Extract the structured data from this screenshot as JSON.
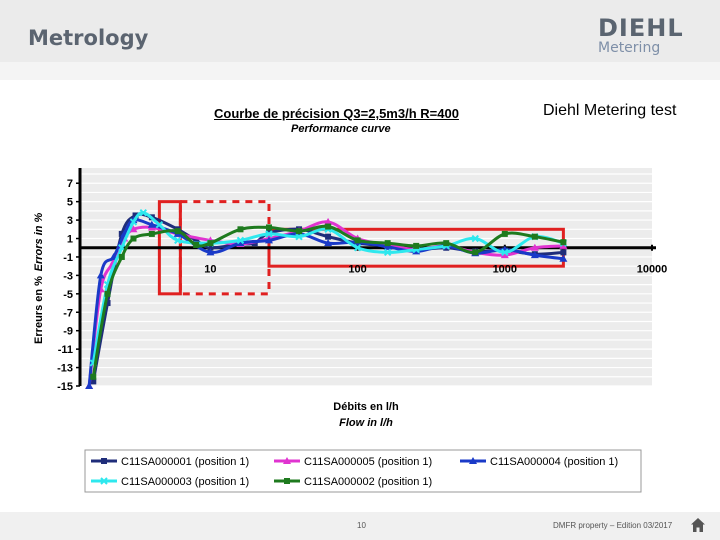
{
  "header": {
    "title": "Metrology"
  },
  "logo": {
    "word": "DIEHL",
    "sub": "Metering"
  },
  "test_label": "Diehl Metering test",
  "footer": {
    "page": "10",
    "copyright": "DMFR property – Edition 03/2017"
  },
  "colors": {
    "header_bg": "#ebebeb",
    "logo_gray": "#5a6470",
    "logo_blue": "#7e8fa8",
    "tolerance_red": "#e02020"
  },
  "chart_data": {
    "type": "line",
    "title": "Courbe de précision Q3=2,5m3/h R=400",
    "subtitle": "Performance curve",
    "xlabel": "Débits en l/h",
    "xlabel2": "Flow in l/h",
    "ylabel": "Erreurs en %",
    "ylabel2": "Errors in %",
    "xscale": "log",
    "xlim": [
      1.3,
      10000
    ],
    "ylim": [
      -15,
      8
    ],
    "xticks": [
      10,
      100,
      1000,
      10000
    ],
    "xtick_labels": [
      "10",
      "100",
      "1000",
      "10000"
    ],
    "yticks": [
      7,
      5,
      3,
      1,
      -1,
      -3,
      -5,
      -7,
      -9,
      -11,
      -13,
      -15
    ],
    "ytick_labels": [
      "7",
      "5",
      "3",
      "1",
      "-1",
      "-3",
      "-5",
      "-7",
      "-9",
      "-11",
      "-13",
      "-15"
    ],
    "grid": true,
    "legend_position": "bottom",
    "tolerance_zones": [
      {
        "style": "solid",
        "x": [
          4.5,
          6.25
        ],
        "y": [
          -5,
          5
        ]
      },
      {
        "style": "dashed",
        "x": [
          6.25,
          25
        ],
        "y": [
          -5,
          5
        ]
      },
      {
        "style": "solid",
        "x": [
          25,
          2500
        ],
        "y": [
          -2,
          2
        ]
      }
    ],
    "series": [
      {
        "name": "C11SA000001 (position 1)",
        "color": "#1f2d7a",
        "marker": "square",
        "x": [
          1.6,
          2.0,
          2.5,
          3.1,
          4,
          6,
          8,
          10,
          16,
          20,
          25,
          40,
          63,
          100,
          160,
          250,
          400,
          630,
          1000,
          1600,
          2500
        ],
        "y": [
          -14.5,
          -6,
          1.5,
          3.5,
          3.3,
          2.0,
          0.8,
          0,
          0.4,
          0.5,
          1.6,
          2.0,
          1.2,
          0.5,
          0.2,
          -0.2,
          0,
          -0.4,
          -0.3,
          -0.7,
          -0.5
        ]
      },
      {
        "name": "C11SA000005 (position 1)",
        "color": "#e033d0",
        "marker": "triangle",
        "x": [
          1.5,
          1.8,
          2.2,
          2.6,
          3.0,
          4,
          6,
          10,
          16,
          25,
          40,
          63,
          100,
          160,
          250,
          400,
          630,
          1000,
          1600,
          2500
        ],
        "y": [
          -15,
          -4.5,
          -1.5,
          1.0,
          2.0,
          2.2,
          1.5,
          0.8,
          0.4,
          1.0,
          1.8,
          2.8,
          1.0,
          0.3,
          -0.2,
          0.2,
          -0.5,
          -0.8,
          0.0,
          0.2
        ]
      },
      {
        "name": "C11SA000004 (position 1)",
        "color": "#1a3ac8",
        "marker": "triangle",
        "x": [
          1.5,
          1.8,
          2.2,
          2.6,
          3.0,
          4,
          6,
          10,
          16,
          25,
          40,
          63,
          100,
          160,
          250,
          400,
          630,
          1000,
          1600,
          2500
        ],
        "y": [
          -15,
          -3.0,
          -1.0,
          1.5,
          3.0,
          2.5,
          1.5,
          -0.5,
          0.5,
          0.8,
          1.5,
          0.5,
          0.6,
          0.1,
          -0.4,
          0.2,
          -0.6,
          -0.2,
          -0.8,
          -1.2
        ]
      },
      {
        "name": "C11SA000003 (position 1)",
        "color": "#2ee8ee",
        "marker": "x",
        "x": [
          1.6,
          2.0,
          2.5,
          3.0,
          3.5,
          4.5,
          6,
          10,
          16,
          25,
          40,
          63,
          100,
          160,
          250,
          400,
          630,
          1000,
          1600,
          2500
        ],
        "y": [
          -12.5,
          -4.0,
          0.0,
          2.8,
          3.8,
          2.5,
          0.8,
          0.5,
          0.8,
          1.5,
          1.2,
          2.0,
          0.0,
          -0.5,
          -0.2,
          0.2,
          1.0,
          -0.5,
          1.2,
          0.5
        ]
      },
      {
        "name": "C11SA000002 (position 1)",
        "color": "#1e7a1e",
        "marker": "square",
        "x": [
          1.6,
          2.0,
          2.5,
          3.0,
          4,
          6,
          8,
          10,
          16,
          25,
          40,
          63,
          100,
          160,
          250,
          400,
          630,
          1000,
          1600,
          2500
        ],
        "y": [
          -14,
          -5.0,
          -1.0,
          1.0,
          1.5,
          1.8,
          0.3,
          0.5,
          2.0,
          2.2,
          1.8,
          2.3,
          0.8,
          0.5,
          0.2,
          0.5,
          -0.5,
          1.5,
          1.2,
          0.6
        ]
      }
    ]
  }
}
